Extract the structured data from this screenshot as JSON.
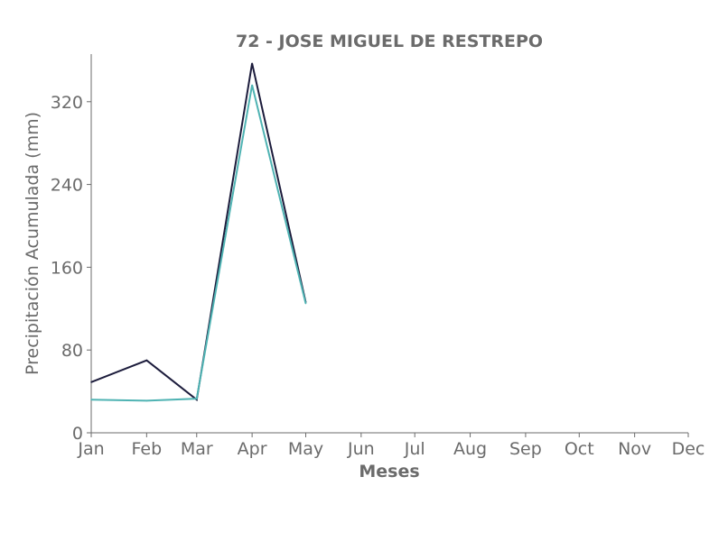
{
  "chart_data": {
    "type": "line",
    "title": "72 - JOSE MIGUEL DE RESTREPO",
    "xlabel": "Meses",
    "ylabel": "Precipitación Acumulada (mm)",
    "categories": [
      "Jan",
      "Feb",
      "Mar",
      "Apr",
      "May",
      "Jun",
      "Jul",
      "Aug",
      "Sep",
      "Oct",
      "Nov",
      "Dec"
    ],
    "x_positions": [
      1,
      32,
      60,
      91,
      121,
      152,
      182,
      213,
      244,
      274,
      305,
      335
    ],
    "xlim": [
      1,
      335
    ],
    "ylim": [
      0,
      366
    ],
    "yticks": [
      0,
      80,
      160,
      240,
      320
    ],
    "grid": false,
    "series": [
      {
        "color": "#1c1c3c",
        "x": [
          1,
          32,
          60,
          91,
          121
        ],
        "values": [
          49,
          70,
          32,
          357,
          126
        ]
      },
      {
        "color": "#4fb3b3",
        "x": [
          1,
          32,
          60,
          91,
          121
        ],
        "values": [
          32,
          31,
          33,
          336,
          125
        ]
      }
    ]
  }
}
